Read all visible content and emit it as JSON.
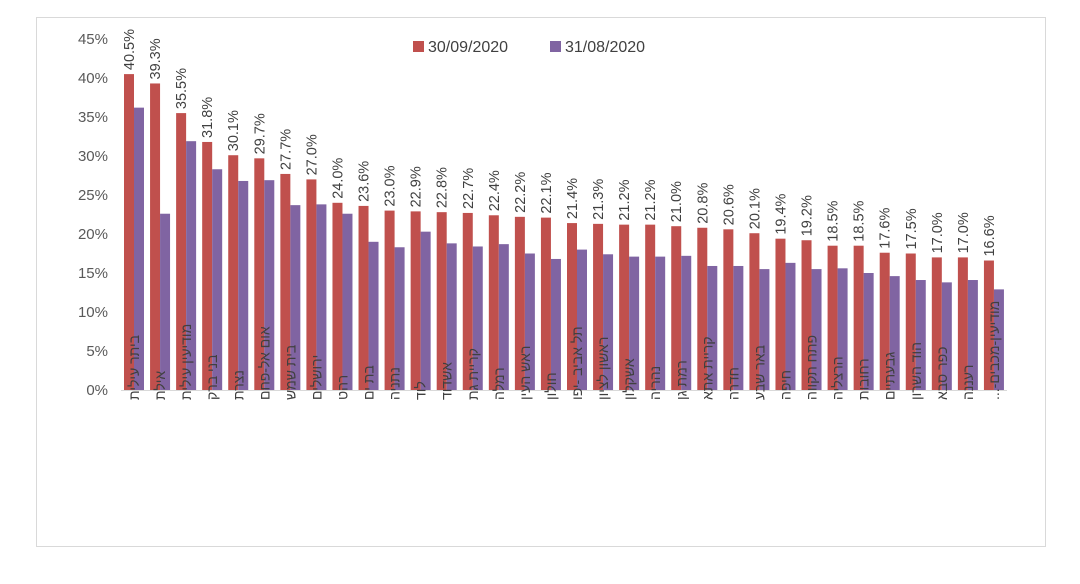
{
  "chart_data": {
    "type": "bar",
    "title": "",
    "xlabel": "",
    "ylabel": "",
    "ylim": [
      0,
      45
    ],
    "yticks": [
      0,
      5,
      10,
      15,
      20,
      25,
      30,
      35,
      40,
      45
    ],
    "ytick_suffix": "%",
    "grid": false,
    "legend_position": "top",
    "categories": [
      "ביתר עילית",
      "אילת",
      "מודיעין עילית",
      "בני ברק",
      "נצרת",
      "אום אל-פחם",
      "בית שמש",
      "ירושלים",
      "רהט",
      "בת ים",
      "נתניה",
      "לוד",
      "אשדוד",
      "קריית גת",
      "רמלה",
      "ראש העין",
      "חולון",
      "תל אביב -יפו",
      "ראשון לציון",
      "אשקלון",
      "נהריה",
      "רמת גן",
      "קריית אתא",
      "חדרה",
      "באר שבע",
      "חיפה",
      "פתח תקווה",
      "הרצליה",
      "רחובות",
      "גבעתיים",
      "הוד השרון",
      "כפר סבא",
      "רעננה",
      "מודיעין-מכבים-..."
    ],
    "series": [
      {
        "name": "30/09/2020",
        "color": "#c0504d",
        "values": [
          40.5,
          39.3,
          35.5,
          31.8,
          30.1,
          29.7,
          27.7,
          27.0,
          24.0,
          23.6,
          23.0,
          22.9,
          22.8,
          22.7,
          22.4,
          22.2,
          22.1,
          21.4,
          21.3,
          21.2,
          21.2,
          21.0,
          20.8,
          20.6,
          20.1,
          19.4,
          19.2,
          18.5,
          18.5,
          17.6,
          17.5,
          17.0,
          17.0,
          16.6
        ],
        "data_labels": [
          "40.5%",
          "39.3%",
          "35.5%",
          "31.8%",
          "30.1%",
          "29.7%",
          "27.7%",
          "27.0%",
          "24.0%",
          "23.6%",
          "23.0%",
          "22.9%",
          "22.8%",
          "22.7%",
          "22.4%",
          "22.2%",
          "22.1%",
          "21.4%",
          "21.3%",
          "21.2%",
          "21.2%",
          "21.0%",
          "20.8%",
          "20.6%",
          "20.1%",
          "19.4%",
          "19.2%",
          "18.5%",
          "18.5%",
          "17.6%",
          "17.5%",
          "17.0%",
          "17.0%",
          "16.6%"
        ]
      },
      {
        "name": "31/08/2020",
        "color": "#8064a2",
        "values": [
          36.2,
          22.6,
          31.9,
          28.3,
          26.8,
          26.9,
          23.7,
          23.8,
          22.6,
          19.0,
          18.3,
          20.3,
          18.8,
          18.4,
          18.7,
          17.5,
          16.8,
          18.0,
          17.4,
          17.1,
          17.1,
          17.2,
          15.9,
          15.9,
          15.5,
          16.3,
          15.5,
          15.6,
          15.0,
          14.6,
          14.1,
          13.8,
          14.1,
          12.9
        ]
      }
    ]
  }
}
